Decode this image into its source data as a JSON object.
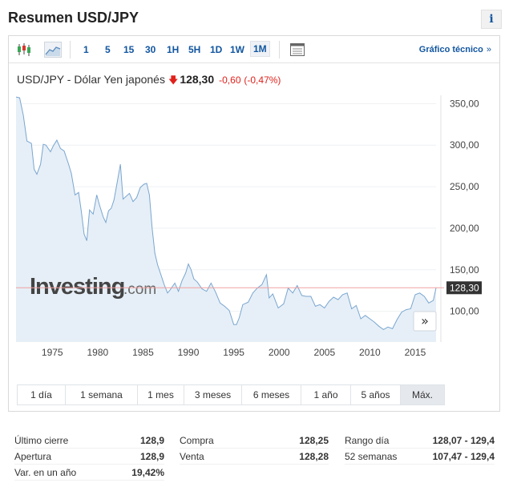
{
  "header": {
    "title": "Resumen USD/JPY",
    "info_label": "i"
  },
  "toolbar": {
    "icons": [
      "candlestick-chart-icon",
      "area-chart-icon",
      "table-view-icon"
    ],
    "periods": [
      "1",
      "5",
      "15",
      "30",
      "1H",
      "5H",
      "1D",
      "1W",
      "1M"
    ],
    "active_period": "1M",
    "tech_link": "Gráfico técnico",
    "tech_chevron": "»"
  },
  "quote": {
    "name": "USD/JPY - Dólar Yen japonés",
    "price": "128,30",
    "change": "-0,60",
    "change_pct": "(-0,47%)"
  },
  "chart_data": {
    "type": "area",
    "xlim": [
      1971,
      2017.3
    ],
    "ylim": [
      63,
      360
    ],
    "y_ticks": [
      "350,00",
      "300,00",
      "250,00",
      "200,00",
      "150,00",
      "100,00"
    ],
    "y_tick_values": [
      350,
      300,
      250,
      200,
      150,
      100
    ],
    "x_ticks": [
      "1975",
      "1980",
      "1985",
      "1990",
      "1995",
      "2000",
      "2005",
      "2010",
      "2015"
    ],
    "x_tick_values": [
      1975,
      1980,
      1985,
      1990,
      1995,
      2000,
      2005,
      2010,
      2015
    ],
    "last_value": 128.3,
    "last_value_label": "128,30",
    "watermark_brand": "Investing",
    "watermark_suffix": ".com",
    "colors": {
      "line": "#7aa6d0",
      "fill": "#e6eff7",
      "last_line": "#f0a0a0",
      "last_label_bg": "#333333"
    },
    "series": [
      {
        "x": [
          1971.0,
          1971.4,
          1971.8,
          1972.2,
          1972.7,
          1973.0,
          1973.3,
          1973.7,
          1974.0,
          1974.3,
          1974.8,
          1975.1,
          1975.5,
          1975.9,
          1976.3,
          1976.8,
          1977.1,
          1977.5,
          1977.9,
          1978.2,
          1978.5,
          1978.8,
          1979.1,
          1979.5,
          1979.9,
          1980.2,
          1980.6,
          1980.9,
          1981.2,
          1981.5,
          1981.8,
          1982.1,
          1982.5,
          1982.8,
          1983.1,
          1983.5,
          1983.9,
          1984.3,
          1984.7,
          1985.1,
          1985.4,
          1985.7,
          1986.0,
          1986.3,
          1986.6,
          1987.0,
          1987.3,
          1987.7,
          1988.0,
          1988.5,
          1988.9,
          1989.3,
          1989.7,
          1990.0,
          1990.3,
          1990.6,
          1991.0,
          1991.5,
          1992.0,
          1992.5,
          1993.0,
          1993.5,
          1994.0,
          1994.5,
          1995.0,
          1995.3,
          1995.6,
          1996.0,
          1996.6,
          1997.1,
          1997.6,
          1998.1,
          1998.6,
          1998.9,
          1999.3,
          1999.9,
          2000.5,
          2001.0,
          2001.5,
          2002.0,
          2002.5,
          2003.0,
          2003.5,
          2004.0,
          2004.5,
          2005.0,
          2005.5,
          2006.0,
          2006.5,
          2007.0,
          2007.5,
          2008.0,
          2008.5,
          2009.0,
          2009.5,
          2010.0,
          2010.5,
          2011.0,
          2011.5,
          2012.0,
          2012.5,
          2013.0,
          2013.5,
          2014.0,
          2014.5,
          2015.0,
          2015.5,
          2016.0,
          2016.5,
          2017.0,
          2017.3
        ],
        "values": [
          358,
          357,
          336,
          305,
          302,
          271,
          265,
          277,
          301,
          300,
          292,
          299,
          306,
          296,
          293,
          277,
          266,
          240,
          243,
          220,
          193,
          185,
          222,
          217,
          240,
          228,
          214,
          207,
          221,
          224,
          234,
          252,
          277,
          235,
          238,
          242,
          232,
          237,
          249,
          253,
          254,
          240,
          200,
          170,
          156,
          143,
          133,
          122,
          126,
          134,
          124,
          137,
          146,
          157,
          150,
          139,
          135,
          127,
          124,
          134,
          123,
          110,
          106,
          101,
          84,
          84,
          92,
          108,
          111,
          122,
          128,
          132,
          144,
          116,
          121,
          104,
          109,
          128,
          122,
          131,
          119,
          118,
          118,
          106,
          108,
          104,
          112,
          117,
          114,
          120,
          122,
          103,
          107,
          91,
          95,
          91,
          87,
          82,
          78,
          81,
          79,
          90,
          99,
          102,
          103,
          120,
          122,
          118,
          110,
          113,
          128.3
        ]
      }
    ]
  },
  "ranges": {
    "items": [
      "1 día",
      "1 semana",
      "1 mes",
      "3 meses",
      "6 meses",
      "1 año",
      "5 años",
      "Máx."
    ],
    "active": "Máx."
  },
  "stats": {
    "col1": [
      {
        "label": "Último cierre",
        "value": "128,9"
      },
      {
        "label": "Apertura",
        "value": "128,9"
      },
      {
        "label": "Var. en un año",
        "value": "19,42%"
      }
    ],
    "col2": [
      {
        "label": "Compra",
        "value": "128,25"
      },
      {
        "label": "Venta",
        "value": "128,28"
      }
    ],
    "col3": [
      {
        "label": "Rango día",
        "value": "128,07 - 129,4"
      },
      {
        "label": "52 semanas",
        "value": "107,47 - 129,4"
      }
    ]
  }
}
